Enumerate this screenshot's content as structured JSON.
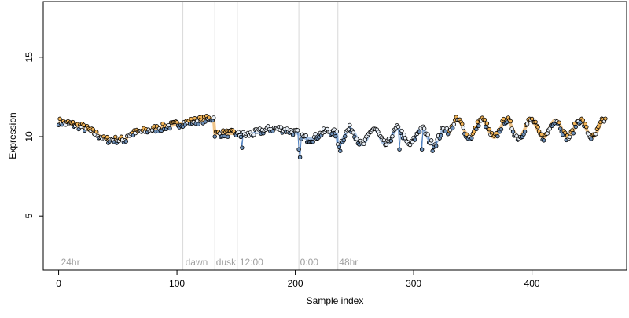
{
  "chart_data": {
    "type": "scatter",
    "title": "",
    "xlabel": "Sample index",
    "ylabel": "Expression",
    "xlim": [
      -13,
      480
    ],
    "ylim": [
      1.6,
      18.5
    ],
    "x_ticks": [
      0,
      100,
      200,
      300,
      400
    ],
    "x_tick_labels": [
      "0",
      "100",
      "200",
      "300",
      "400"
    ],
    "y_ticks": [
      5,
      10,
      15
    ],
    "y_tick_labels": [
      "5",
      "10",
      "15"
    ],
    "grid": false,
    "legend": "none",
    "colors": {
      "frame": "#000000",
      "point_stroke": "#000000",
      "point_fill_light": "#e9f0f8",
      "point_fill_dark": "#6d8fb7",
      "point_fill_warm": "#f2b457",
      "fit_orange": "#f0c58a",
      "fit_blue": "#a9c3e4",
      "connector_blue": "#4f80c0",
      "annotation_text": "#a0a0a0",
      "vline": "#d8d8d8"
    },
    "annotations": [
      {
        "label": "24hr",
        "x": 2
      },
      {
        "label": "dawn",
        "x": 107
      },
      {
        "label": "dusk",
        "x": 133
      },
      {
        "label": "12:00",
        "x": 153
      },
      {
        "label": "0:00",
        "x": 204
      },
      {
        "label": "48hr",
        "x": 237
      }
    ],
    "vlines": [
      105,
      132,
      151,
      203,
      236
    ]
  }
}
